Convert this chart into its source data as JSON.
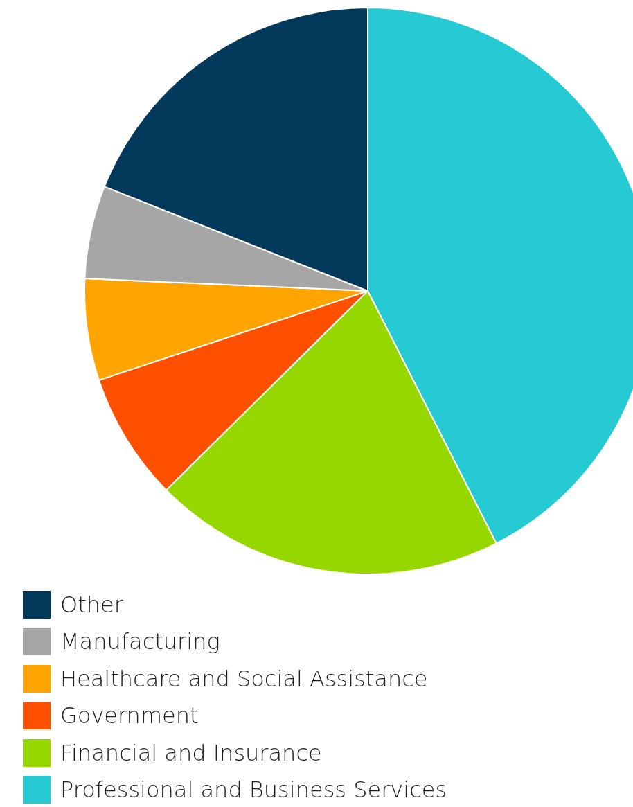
{
  "chart_data": {
    "type": "pie",
    "categories": [
      "Other",
      "Manufacturing",
      "Healthcare and Social Assistance",
      "Government",
      "Financial and Insurance",
      "Professional and Business Services"
    ],
    "values": [
      19.0,
      5.3,
      5.8,
      7.3,
      20.1,
      42.5
    ],
    "colors": [
      "#033a5c",
      "#a6a6a6",
      "#ffa400",
      "#ff5000",
      "#97d700",
      "#26cad3"
    ],
    "legend": "bottom"
  }
}
